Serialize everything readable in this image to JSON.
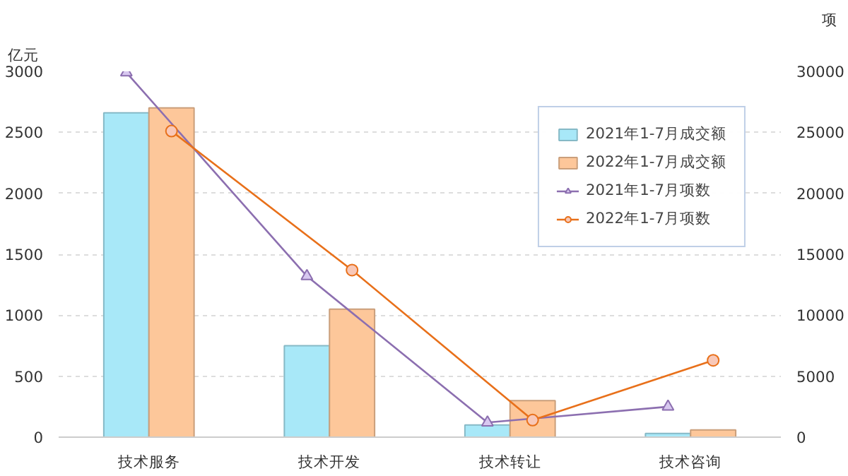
{
  "chart_data": {
    "type": "bar",
    "categories": [
      "技术服务",
      "技术开发",
      "技术转让",
      "技术咨询"
    ],
    "ylabel": "亿元",
    "y2label": "项",
    "series": [
      {
        "name": "2021年1-7月成交额",
        "color": "#a8e8f8",
        "values": [
          2660,
          750,
          100,
          30
        ]
      },
      {
        "name": "2022年1-7月成交额",
        "color": "#fdc79a",
        "values": [
          2700,
          1050,
          300,
          60
        ]
      },
      {
        "name": "2021年1-7月项数",
        "type": "line",
        "axis": "y2",
        "marker": "triangle",
        "color": "#8c6fb0",
        "values": [
          29900,
          13200,
          1200,
          2500
        ]
      },
      {
        "name": "2022年1-7月项数",
        "type": "line",
        "axis": "y2",
        "marker": "circle",
        "color": "#e8701a",
        "values": [
          25100,
          13700,
          1400,
          6300
        ]
      }
    ],
    "ylim": [
      0,
      3000
    ],
    "yticks": [
      0,
      500,
      1000,
      1500,
      2000,
      2500,
      3000
    ],
    "y2lim": [
      0,
      30000
    ],
    "y2ticks": [
      0,
      5000,
      10000,
      15000,
      20000,
      25000,
      30000
    ],
    "grid": "y",
    "legend": "top right"
  }
}
